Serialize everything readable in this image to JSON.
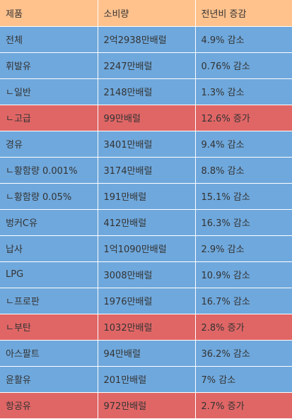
{
  "headers": [
    "제품",
    "소비량",
    "전년비 증감"
  ],
  "colors": {
    "header": "#ffc28d",
    "blue": "#6fa8dc",
    "red": "#e06666"
  },
  "rows": [
    {
      "product": "전체",
      "consumption": "2억2938만배럴",
      "change": "4.9% 감소",
      "highlight": false
    },
    {
      "product": "휘발유",
      "consumption": "2247만배럴",
      "change": "0.76% 감소",
      "highlight": false
    },
    {
      "product": "ㄴ일반",
      "consumption": "2148만배럴",
      "change": "1.3% 감소",
      "highlight": false
    },
    {
      "product": "ㄴ고급",
      "consumption": "99만배럴",
      "change": "12.6% 증가",
      "highlight": true
    },
    {
      "product": "경유",
      "consumption": "3401만배럴",
      "change": "9.4% 감소",
      "highlight": false
    },
    {
      "product": "ㄴ황함량 0.001%",
      "consumption": "3174만배럴",
      "change": "8.8% 감소",
      "highlight": false
    },
    {
      "product": "ㄴ황함량 0.05%",
      "consumption": "191만배럴",
      "change": "15.1% 감소",
      "highlight": false
    },
    {
      "product": "벙커C유",
      "consumption": "412만배럴",
      "change": "16.3% 감소",
      "highlight": false
    },
    {
      "product": "납사",
      "consumption": "1억1090만배럴",
      "change": "2.9% 감소",
      "highlight": false
    },
    {
      "product": "LPG",
      "consumption": "3008만배럴",
      "change": "10.9% 감소",
      "highlight": false
    },
    {
      "product": "ㄴ프로판",
      "consumption": "1976만배럴",
      "change": "16.7% 감소",
      "highlight": false
    },
    {
      "product": "ㄴ부탄",
      "consumption": "1032만배럴",
      "change": "2.8% 증가",
      "highlight": true
    },
    {
      "product": "아스팔트",
      "consumption": "94만배럴",
      "change": "36.2% 감소",
      "highlight": false
    },
    {
      "product": "윤활유",
      "consumption": "201만배럴",
      "change": "7% 감소",
      "highlight": false
    },
    {
      "product": "항공유",
      "consumption": "972만배럴",
      "change": "2.7% 증가",
      "highlight": true
    }
  ]
}
